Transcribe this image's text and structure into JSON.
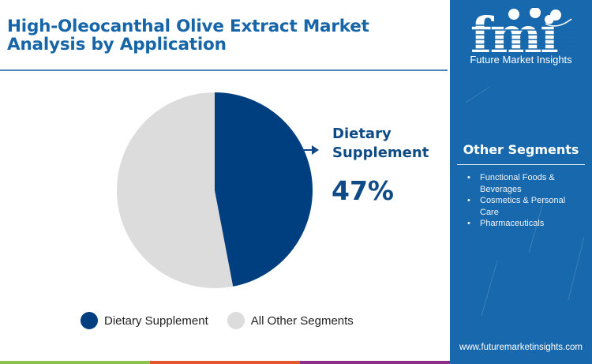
{
  "header": {
    "title_line1": "High-Oleocanthal Olive Extract Market",
    "title_line2": "Analysis by Application"
  },
  "callout": {
    "label_line1": "Dietary",
    "label_line2": "Supplement",
    "percent": "47%"
  },
  "legend": [
    {
      "label": "Dietary Supplement",
      "color": "#003f7f"
    },
    {
      "label": "All Other Segments",
      "color": "#dcdcdc"
    }
  ],
  "sidebar": {
    "logo_text": "fmi",
    "logo_subtitle": "Future Market Insights",
    "segments_title": "Other Segments",
    "segments": [
      "Functional Foods & Beverages",
      "Cosmetics & Personal Care",
      "Pharmaceuticals"
    ],
    "website": "www.futuremarketinsights.com"
  },
  "colors": {
    "accent": "#1565a8",
    "primary_slice": "#003f7f",
    "secondary_slice": "#dcdcdc",
    "sidebar_bg": "#1768ac",
    "stripe_green": "#8bc34a",
    "stripe_orange": "#e4572e",
    "stripe_purple": "#8e2c8a"
  },
  "chart_data": {
    "type": "pie",
    "title": "High-Oleocanthal Olive Extract Market Analysis by Application",
    "categories": [
      "Dietary Supplement",
      "All Other Segments"
    ],
    "values": [
      47,
      53
    ],
    "unit": "%",
    "annotations": [
      {
        "target": "Dietary Supplement",
        "text": "Dietary Supplement 47%"
      }
    ],
    "legend_position": "bottom",
    "start_angle": "12 o'clock, clockwise"
  }
}
